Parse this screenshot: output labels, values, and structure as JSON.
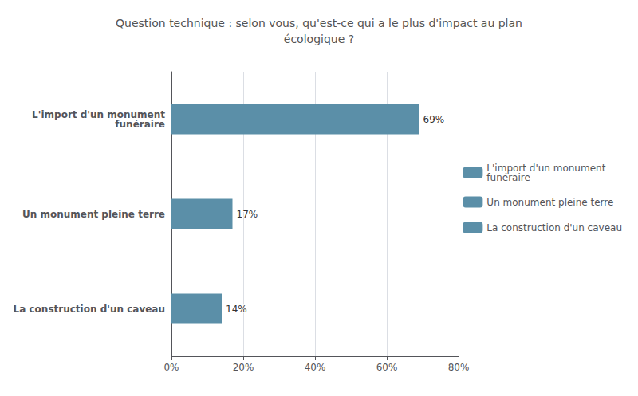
{
  "chart_data": {
    "type": "bar",
    "orientation": "horizontal",
    "title": "Question technique : selon vous, qu'est-ce qui a le plus d'impact au plan\nécologique ?",
    "categories": [
      "La construction d'un caveau",
      "Un monument pleine terre",
      "L'import d'un monument\nfunéraire"
    ],
    "series": [
      {
        "name": "L'import d'un monument\nfunéraire",
        "color": "#5b8fa8",
        "values": [
          null,
          null,
          69
        ],
        "value_labels": [
          null,
          null,
          "69%"
        ]
      },
      {
        "name": "Un monument pleine terre",
        "color": "#5b8fa8",
        "values": [
          null,
          17,
          null
        ],
        "value_labels": [
          null,
          "17%",
          null
        ]
      },
      {
        "name": "La construction d'un caveau",
        "color": "#5b8fa8",
        "values": [
          14,
          null,
          null
        ],
        "value_labels": [
          "14%",
          null,
          null
        ]
      }
    ],
    "data_labels": true,
    "xlim": [
      0,
      80
    ],
    "xticks": [
      {
        "value": 0,
        "label": "0%"
      },
      {
        "value": 20,
        "label": "20%"
      },
      {
        "value": 40,
        "label": "40%"
      },
      {
        "value": 60,
        "label": "60%"
      },
      {
        "value": 80,
        "label": "80%"
      }
    ],
    "grid": true,
    "legend": "right"
  }
}
